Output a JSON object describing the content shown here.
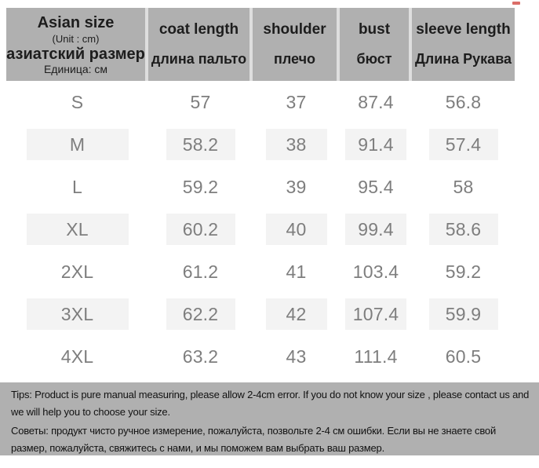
{
  "unit": "cm",
  "colors": {
    "header_bg": "#b0b0b0",
    "divider": "#dedede",
    "shaded_cell_bg": "#f3f3f3",
    "tips_bg": "#b0b0b0",
    "header_text": "#1d1d1d",
    "data_text": "#7e7e7e",
    "tips_text": "#121212",
    "artifact_red": "#d24a43"
  },
  "chart_data": {
    "type": "table",
    "title": "Asian size chart (Unit : cm)",
    "columns": [
      {
        "key": "size",
        "en": "Asian size",
        "unit_en": "(Unit : cm)",
        "ru": "азиатский размер",
        "unit_ru": "Единица: см"
      },
      {
        "key": "coat_length",
        "en": "coat length",
        "ru": "длина пальто"
      },
      {
        "key": "shoulder",
        "en": "shoulder",
        "ru": "плечо"
      },
      {
        "key": "bust",
        "en": "bust",
        "ru": "бюст"
      },
      {
        "key": "sleeve_length",
        "en": "sleeve length",
        "ru": "Длина Рукава"
      }
    ],
    "rows": [
      {
        "size": "S",
        "coat_length": "57",
        "shoulder": "37",
        "bust": "87.4",
        "sleeve_length": "56.8",
        "shaded": false
      },
      {
        "size": "M",
        "coat_length": "58.2",
        "shoulder": "38",
        "bust": "91.4",
        "sleeve_length": "57.4",
        "shaded": true
      },
      {
        "size": "L",
        "coat_length": "59.2",
        "shoulder": "39",
        "bust": "95.4",
        "sleeve_length": "58",
        "shaded": false
      },
      {
        "size": "XL",
        "coat_length": "60.2",
        "shoulder": "40",
        "bust": "99.4",
        "sleeve_length": "58.6",
        "shaded": true
      },
      {
        "size": "2XL",
        "coat_length": "61.2",
        "shoulder": "41",
        "bust": "103.4",
        "sleeve_length": "59.2",
        "shaded": false
      },
      {
        "size": "3XL",
        "coat_length": "62.2",
        "shoulder": "42",
        "bust": "107.4",
        "sleeve_length": "59.9",
        "shaded": true
      },
      {
        "size": "4XL",
        "coat_length": "63.2",
        "shoulder": "43",
        "bust": "111.4",
        "sleeve_length": "60.5",
        "shaded": false
      }
    ]
  },
  "tips": {
    "en": "Tips: Product is pure manual measuring, please allow 2-4cm error. If you do not know your size , please contact us and we will help you to choose your size.",
    "ru": "Советы: продукт чисто ручное измерение, пожалуйста, позвольте 2-4 см ошибки. Если вы не знаете свой размер, пожалуйста, свяжитесь с нами, и мы поможем вам выбрать ваш размер."
  }
}
